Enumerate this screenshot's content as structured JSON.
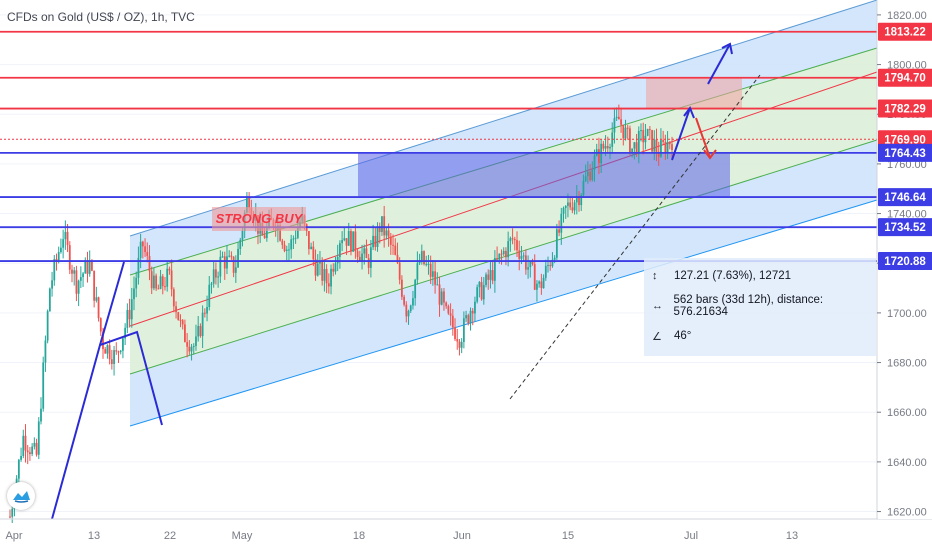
{
  "header": {
    "title": "CFDs on Gold (US$ / OZ), 1h, TVC"
  },
  "chart_data": {
    "type": "candlestick",
    "title": "CFDs on Gold (US$ / OZ), 1h, TVC",
    "symbol": "CFDs on Gold (US$ / OZ)",
    "interval": "1h",
    "source": "TVC",
    "ylim": [
      1617,
      1826
    ],
    "y_ticks": [
      1620,
      1640,
      1660,
      1680,
      1700,
      1720,
      1740,
      1760,
      1780,
      1800,
      1820
    ],
    "y_tick_labels": [
      "1620.00",
      "1640.00",
      "1660.00",
      "1680.00",
      "1700.00",
      "1720.00",
      "1740.00",
      "1760.00",
      "1780.00",
      "1800.00",
      "1820.00"
    ],
    "x_tick_labels": [
      "Apr",
      "13",
      "22",
      "May",
      "18",
      "Jun",
      "15",
      "Jul",
      "13"
    ],
    "price_close_path": [
      1618,
      1650,
      1642,
      1710,
      1732,
      1712,
      1720,
      1688,
      1682,
      1700,
      1728,
      1708,
      1715,
      1692,
      1686,
      1708,
      1722,
      1718,
      1748,
      1730,
      1738,
      1725,
      1738,
      1720,
      1712,
      1732,
      1728,
      1720,
      1736,
      1724,
      1700,
      1722,
      1714,
      1698,
      1690,
      1705,
      1712,
      1722,
      1730,
      1720,
      1710,
      1724,
      1742,
      1748,
      1760,
      1768,
      1778,
      1766,
      1772,
      1765,
      1770
    ],
    "horizontal_levels": [
      {
        "label": "1813.22",
        "value": 1813.22,
        "color": "#f23645"
      },
      {
        "label": "1794.70",
        "value": 1794.7,
        "color": "#f23645"
      },
      {
        "label": "1782.29",
        "value": 1782.29,
        "color": "#f23645"
      },
      {
        "label": "1769.90",
        "value": 1769.9,
        "color": "#f23645"
      },
      {
        "label": "1764.43",
        "value": 1764.43,
        "color": "#3d3de6"
      },
      {
        "label": "1746.64",
        "value": 1746.64,
        "color": "#3d3de6"
      },
      {
        "label": "1734.52",
        "value": 1734.52,
        "color": "#3d3de6"
      },
      {
        "label": "1720.88",
        "value": 1720.88,
        "color": "#3d3de6"
      }
    ],
    "annotations": [
      {
        "text": "STRONG BUY",
        "color": "#f23645"
      }
    ],
    "measure_tool": {
      "price_change": "127.21 (7.63%), 12721",
      "bars_distance": "562 bars (33d 12h), distance: 576.21634",
      "angle": "46°"
    },
    "colors": {
      "up_candle": "#26a69a",
      "down_candle": "#ef5350",
      "channel_fill": "#bbdefb",
      "resistance": "#f23645",
      "support": "#3d3de6"
    }
  }
}
